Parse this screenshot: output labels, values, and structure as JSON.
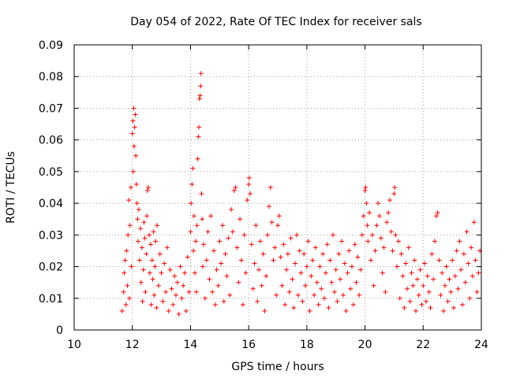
{
  "chart_data": {
    "type": "scatter",
    "title": "Day 054 of 2022, Rate Of TEC Index for receiver sals",
    "xlabel": "GPS time / hours",
    "ylabel": "ROTI / TECUs",
    "xlim": [
      10,
      24
    ],
    "ylim": [
      0,
      0.09
    ],
    "xticks": [
      "10",
      "12",
      "14",
      "16",
      "18",
      "20",
      "22",
      "24"
    ],
    "yticks": [
      "0",
      "0.01",
      "0.02",
      "0.03",
      "0.04",
      "0.05",
      "0.06",
      "0.07",
      "0.08",
      "0.09"
    ],
    "grid": true,
    "marker": "+",
    "color": "#ff0000",
    "series": [
      {
        "name": "ROTI",
        "points": [
          [
            11.65,
            0.006
          ],
          [
            11.7,
            0.012
          ],
          [
            11.72,
            0.018
          ],
          [
            11.75,
            0.022
          ],
          [
            11.78,
            0.008
          ],
          [
            11.8,
            0.025
          ],
          [
            11.83,
            0.014
          ],
          [
            11.85,
            0.03
          ],
          [
            11.88,
            0.041
          ],
          [
            11.9,
            0.01
          ],
          [
            11.92,
            0.033
          ],
          [
            11.95,
            0.045
          ],
          [
            11.97,
            0.02
          ],
          [
            12.0,
            0.062
          ],
          [
            12.02,
            0.066
          ],
          [
            12.03,
            0.05
          ],
          [
            12.05,
            0.07
          ],
          [
            12.06,
            0.058
          ],
          [
            12.08,
            0.064
          ],
          [
            12.1,
            0.068
          ],
          [
            12.12,
            0.055
          ],
          [
            12.14,
            0.046
          ],
          [
            12.16,
            0.04
          ],
          [
            12.18,
            0.035
          ],
          [
            12.2,
            0.028
          ],
          [
            12.22,
            0.038
          ],
          [
            12.25,
            0.022
          ],
          [
            12.28,
            0.032
          ],
          [
            12.3,
            0.015
          ],
          [
            12.33,
            0.026
          ],
          [
            12.35,
            0.009
          ],
          [
            12.38,
            0.019
          ],
          [
            12.4,
            0.034
          ],
          [
            12.43,
            0.029
          ],
          [
            12.45,
            0.012
          ],
          [
            12.48,
            0.024
          ],
          [
            12.5,
            0.036
          ],
          [
            12.52,
            0.044
          ],
          [
            12.55,
            0.045
          ],
          [
            12.58,
            0.03
          ],
          [
            12.6,
            0.018
          ],
          [
            12.63,
            0.027
          ],
          [
            12.65,
            0.008
          ],
          [
            12.68,
            0.022
          ],
          [
            12.7,
            0.016
          ],
          [
            12.73,
            0.031
          ],
          [
            12.75,
            0.011
          ],
          [
            12.78,
            0.02
          ],
          [
            12.8,
            0.028
          ],
          [
            12.83,
            0.007
          ],
          [
            12.85,
            0.033
          ],
          [
            12.9,
            0.014
          ],
          [
            12.95,
            0.024
          ],
          [
            13.0,
            0.018
          ],
          [
            13.05,
            0.009
          ],
          [
            13.1,
            0.021
          ],
          [
            13.15,
            0.012
          ],
          [
            13.2,
            0.026
          ],
          [
            13.25,
            0.006
          ],
          [
            13.3,
            0.019
          ],
          [
            13.35,
            0.013
          ],
          [
            13.4,
            0.008
          ],
          [
            13.45,
            0.017
          ],
          [
            13.5,
            0.011
          ],
          [
            13.55,
            0.015
          ],
          [
            13.6,
            0.005
          ],
          [
            13.65,
            0.02
          ],
          [
            13.7,
            0.01
          ],
          [
            13.75,
            0.014
          ],
          [
            13.8,
            0.018
          ],
          [
            13.85,
            0.006
          ],
          [
            13.9,
            0.023
          ],
          [
            13.95,
            0.012
          ],
          [
            14.0,
            0.031
          ],
          [
            14.02,
            0.04
          ],
          [
            14.05,
            0.046
          ],
          [
            14.08,
            0.051
          ],
          [
            14.1,
            0.025
          ],
          [
            14.12,
            0.036
          ],
          [
            14.15,
            0.018
          ],
          [
            14.18,
            0.028
          ],
          [
            14.2,
            0.012
          ],
          [
            14.22,
            0.033
          ],
          [
            14.25,
            0.054
          ],
          [
            14.27,
            0.061
          ],
          [
            14.29,
            0.064
          ],
          [
            14.31,
            0.073
          ],
          [
            14.33,
            0.074
          ],
          [
            14.35,
            0.077
          ],
          [
            14.36,
            0.081
          ],
          [
            14.38,
            0.043
          ],
          [
            14.4,
            0.035
          ],
          [
            14.42,
            0.02
          ],
          [
            14.45,
            0.027
          ],
          [
            14.5,
            0.01
          ],
          [
            14.55,
            0.022
          ],
          [
            14.6,
            0.031
          ],
          [
            14.65,
            0.016
          ],
          [
            14.7,
            0.036
          ],
          [
            14.75,
            0.012
          ],
          [
            14.8,
            0.025
          ],
          [
            14.85,
            0.008
          ],
          [
            14.9,
            0.019
          ],
          [
            14.95,
            0.014
          ],
          [
            15.0,
            0.028
          ],
          [
            15.05,
            0.021
          ],
          [
            15.1,
            0.033
          ],
          [
            15.15,
            0.009
          ],
          [
            15.2,
            0.024
          ],
          [
            15.25,
            0.017
          ],
          [
            15.3,
            0.029
          ],
          [
            15.35,
            0.011
          ],
          [
            15.4,
            0.038
          ],
          [
            15.45,
            0.031
          ],
          [
            15.5,
            0.044
          ],
          [
            15.55,
            0.045
          ],
          [
            15.6,
            0.026
          ],
          [
            15.65,
            0.015
          ],
          [
            15.7,
            0.035
          ],
          [
            15.75,
            0.022
          ],
          [
            15.8,
            0.008
          ],
          [
            15.85,
            0.03
          ],
          [
            15.9,
            0.018
          ],
          [
            15.95,
            0.041
          ],
          [
            16.0,
            0.046
          ],
          [
            16.02,
            0.048
          ],
          [
            16.05,
            0.043
          ],
          [
            16.1,
            0.027
          ],
          [
            16.15,
            0.013
          ],
          [
            16.2,
            0.021
          ],
          [
            16.25,
            0.033
          ],
          [
            16.3,
            0.009
          ],
          [
            16.35,
            0.019
          ],
          [
            16.4,
            0.028
          ],
          [
            16.45,
            0.014
          ],
          [
            16.5,
            0.024
          ],
          [
            16.55,
            0.006
          ],
          [
            16.6,
            0.017
          ],
          [
            16.65,
            0.03
          ],
          [
            16.7,
            0.039
          ],
          [
            16.75,
            0.045
          ],
          [
            16.8,
            0.034
          ],
          [
            16.85,
            0.022
          ],
          [
            16.9,
            0.026
          ],
          [
            16.95,
            0.011
          ],
          [
            17.0,
            0.033
          ],
          [
            17.05,
            0.036
          ],
          [
            17.1,
            0.023
          ],
          [
            17.15,
            0.014
          ],
          [
            17.2,
            0.027
          ],
          [
            17.25,
            0.008
          ],
          [
            17.3,
            0.019
          ],
          [
            17.35,
            0.024
          ],
          [
            17.4,
            0.012
          ],
          [
            17.45,
            0.029
          ],
          [
            17.5,
            0.016
          ],
          [
            17.55,
            0.007
          ],
          [
            17.6,
            0.021
          ],
          [
            17.65,
            0.03
          ],
          [
            17.7,
            0.011
          ],
          [
            17.75,
            0.025
          ],
          [
            17.8,
            0.018
          ],
          [
            17.85,
            0.009
          ],
          [
            17.9,
            0.024
          ],
          [
            17.95,
            0.014
          ],
          [
            18.0,
            0.02
          ],
          [
            18.05,
            0.028
          ],
          [
            18.1,
            0.006
          ],
          [
            18.15,
            0.017
          ],
          [
            18.2,
            0.022
          ],
          [
            18.25,
            0.011
          ],
          [
            18.3,
            0.026
          ],
          [
            18.35,
            0.015
          ],
          [
            18.4,
            0.008
          ],
          [
            18.45,
            0.02
          ],
          [
            18.5,
            0.013
          ],
          [
            18.55,
            0.024
          ],
          [
            18.6,
            0.01
          ],
          [
            18.65,
            0.018
          ],
          [
            18.7,
            0.027
          ],
          [
            18.75,
            0.007
          ],
          [
            18.8,
            0.022
          ],
          [
            18.85,
            0.015
          ],
          [
            18.9,
            0.03
          ],
          [
            18.95,
            0.012
          ],
          [
            19.0,
            0.019
          ],
          [
            19.05,
            0.009
          ],
          [
            19.1,
            0.024
          ],
          [
            19.15,
            0.016
          ],
          [
            19.2,
            0.028
          ],
          [
            19.25,
            0.011
          ],
          [
            19.3,
            0.021
          ],
          [
            19.35,
            0.006
          ],
          [
            19.4,
            0.018
          ],
          [
            19.45,
            0.025
          ],
          [
            19.5,
            0.013
          ],
          [
            19.55,
            0.02
          ],
          [
            19.6,
            0.008
          ],
          [
            19.65,
            0.027
          ],
          [
            19.7,
            0.015
          ],
          [
            19.75,
            0.023
          ],
          [
            19.8,
            0.011
          ],
          [
            19.85,
            0.019
          ],
          [
            19.9,
            0.03
          ],
          [
            19.95,
            0.036
          ],
          [
            20.0,
            0.044
          ],
          [
            20.02,
            0.045
          ],
          [
            20.05,
            0.04
          ],
          [
            20.08,
            0.033
          ],
          [
            20.1,
            0.028
          ],
          [
            20.15,
            0.037
          ],
          [
            20.2,
            0.022
          ],
          [
            20.25,
            0.03
          ],
          [
            20.3,
            0.014
          ],
          [
            20.35,
            0.025
          ],
          [
            20.4,
            0.033
          ],
          [
            20.45,
            0.04
          ],
          [
            20.5,
            0.036
          ],
          [
            20.55,
            0.029
          ],
          [
            20.6,
            0.018
          ],
          [
            20.65,
            0.026
          ],
          [
            20.7,
            0.012
          ],
          [
            20.75,
            0.034
          ],
          [
            20.8,
            0.037
          ],
          [
            20.85,
            0.041
          ],
          [
            20.9,
            0.031
          ],
          [
            20.95,
            0.025
          ],
          [
            21.0,
            0.043
          ],
          [
            21.02,
            0.045
          ],
          [
            21.05,
            0.03
          ],
          [
            21.1,
            0.02
          ],
          [
            21.15,
            0.028
          ],
          [
            21.2,
            0.01
          ],
          [
            21.25,
            0.024
          ],
          [
            21.3,
            0.017
          ],
          [
            21.35,
            0.007
          ],
          [
            21.4,
            0.021
          ],
          [
            21.45,
            0.013
          ],
          [
            21.5,
            0.026
          ],
          [
            21.55,
            0.009
          ],
          [
            21.6,
            0.018
          ],
          [
            21.65,
            0.014
          ],
          [
            21.7,
            0.022
          ],
          [
            21.75,
            0.006
          ],
          [
            21.8,
            0.016
          ],
          [
            21.85,
            0.011
          ],
          [
            21.9,
            0.019
          ],
          [
            21.95,
            0.008
          ],
          [
            22.0,
            0.014
          ],
          [
            22.05,
            0.021
          ],
          [
            22.1,
            0.009
          ],
          [
            22.15,
            0.017
          ],
          [
            22.2,
            0.012
          ],
          [
            22.25,
            0.007
          ],
          [
            22.3,
            0.024
          ],
          [
            22.35,
            0.016
          ],
          [
            22.4,
            0.028
          ],
          [
            22.45,
            0.036
          ],
          [
            22.5,
            0.037
          ],
          [
            22.55,
            0.022
          ],
          [
            22.6,
            0.011
          ],
          [
            22.65,
            0.018
          ],
          [
            22.7,
            0.006
          ],
          [
            22.75,
            0.014
          ],
          [
            22.8,
            0.02
          ],
          [
            22.85,
            0.009
          ],
          [
            22.9,
            0.016
          ],
          [
            22.95,
            0.012
          ],
          [
            23.0,
            0.022
          ],
          [
            23.05,
            0.007
          ],
          [
            23.1,
            0.017
          ],
          [
            23.15,
            0.025
          ],
          [
            23.2,
            0.013
          ],
          [
            23.25,
            0.028
          ],
          [
            23.3,
            0.019
          ],
          [
            23.35,
            0.008
          ],
          [
            23.4,
            0.024
          ],
          [
            23.45,
            0.015
          ],
          [
            23.5,
            0.031
          ],
          [
            23.55,
            0.021
          ],
          [
            23.6,
            0.01
          ],
          [
            23.65,
            0.026
          ],
          [
            23.7,
            0.017
          ],
          [
            23.75,
            0.034
          ],
          [
            23.8,
            0.022
          ],
          [
            23.85,
            0.012
          ],
          [
            23.9,
            0.018
          ],
          [
            23.95,
            0.025
          ]
        ]
      }
    ]
  }
}
